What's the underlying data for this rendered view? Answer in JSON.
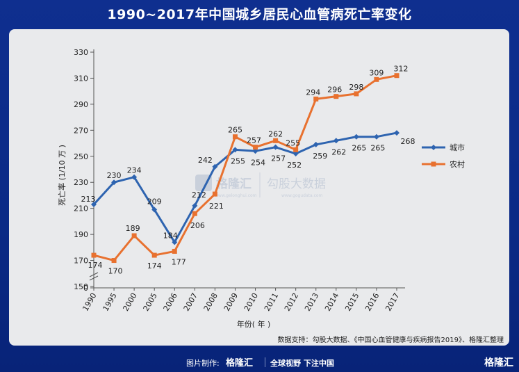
{
  "title": "1990~2017年中国城乡居民心血管病死亡率变化",
  "source_note": "数据支持：勾股大数据、《中国心血管健康与疾病报告2019》、格隆汇整理",
  "footer": {
    "credit_label": "图片制作:",
    "logo_text": "格隆汇",
    "slogan": "全球视野 下注中国",
    "brand": "格隆汇"
  },
  "watermark": {
    "logo_text": "格隆汇",
    "logo_url": "www.gelonghui.com",
    "partner_text": "勾股大数据",
    "partner_url": "www.gogudata.com"
  },
  "colors": {
    "urban": "#2e64b0",
    "rural": "#e8712f"
  },
  "chart_data": {
    "type": "line",
    "title": "",
    "xlabel": "年份( 年 )",
    "ylabel": "死亡率 (1/10 万 )",
    "categories": [
      "1990",
      "1995",
      "2000",
      "2005",
      "2006",
      "2007",
      "2008",
      "2009",
      "2010",
      "2011",
      "2012",
      "2013",
      "2014",
      "2015",
      "2016",
      "2017"
    ],
    "yticks": [
      0,
      150,
      170,
      190,
      210,
      230,
      250,
      270,
      290,
      310,
      330
    ],
    "ylim": [
      150,
      330
    ],
    "axis_break": true,
    "legend_position": "right",
    "series": [
      {
        "name": "城市",
        "color": "#2e64b0",
        "values": [
          213,
          230,
          234,
          209,
          184,
          212,
          242,
          255,
          254,
          257,
          252,
          259,
          262,
          265,
          265,
          268
        ]
      },
      {
        "name": "农村",
        "color": "#e8712f",
        "values": [
          174,
          170,
          189,
          174,
          177,
          206,
          221,
          265,
          257,
          262,
          255,
          294,
          296,
          298,
          309,
          312
        ]
      }
    ]
  }
}
